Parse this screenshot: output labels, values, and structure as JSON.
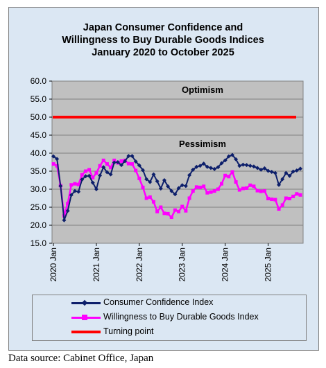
{
  "chart_data": {
    "type": "line",
    "title": [
      "Japan Consumer Confidence and",
      "Willingness to Buy Durable Goods Indices",
      "January 2020 to October 2025"
    ],
    "ylim": [
      15.0,
      60.0
    ],
    "yticks": [
      "60.0",
      "55.0",
      "50.0",
      "45.0",
      "40.0",
      "35.0",
      "30.0",
      "25.0",
      "20.0",
      "15.0"
    ],
    "ytick_values": [
      60,
      55,
      50,
      45,
      40,
      35,
      30,
      25,
      20,
      15
    ],
    "xticks": [
      "2020 Jan",
      "2021 Jan",
      "2022 Jan",
      "2023 Jan",
      "2024 Jan",
      "2025 Jan"
    ],
    "x_start": "2020-01",
    "x_end": "2025-10",
    "annotations": {
      "above": "Optimism",
      "below": "Pessimism"
    },
    "grid": "horizontal",
    "legend_position": "bottom",
    "series": [
      {
        "name": "Consumer Confidence Index",
        "color": "#0d1f6b",
        "marker": "diamond",
        "values": [
          39.1,
          38.4,
          30.9,
          21.4,
          24.0,
          28.4,
          29.5,
          29.3,
          32.7,
          33.6,
          33.7,
          31.8,
          30.0,
          33.8,
          36.1,
          34.7,
          34.1,
          37.4,
          37.5,
          36.7,
          37.8,
          39.2,
          39.2,
          37.7,
          36.6,
          35.3,
          32.8,
          32.0,
          34.1,
          32.2,
          30.2,
          32.5,
          30.8,
          29.5,
          28.6,
          30.3,
          31.1,
          30.9,
          33.9,
          35.4,
          36.2,
          36.5,
          37.1,
          36.2,
          35.9,
          35.6,
          36.1,
          37.2,
          38.0,
          39.1,
          39.5,
          38.3,
          36.5,
          36.8,
          36.7,
          36.5,
          36.3,
          35.9,
          35.4,
          35.8,
          35.1,
          34.8,
          34.5,
          31.2,
          32.8,
          34.5,
          33.7,
          34.9,
          35.2,
          35.7
        ]
      },
      {
        "name": "Willingness to Buy Durable Goods Index",
        "color": "#ff00ff",
        "marker": "square",
        "values": [
          37.0,
          36.5,
          31.0,
          22.6,
          26.0,
          31.2,
          31.5,
          31.3,
          34.0,
          35.0,
          35.4,
          33.2,
          34.5,
          36.5,
          38.0,
          37.0,
          36.0,
          38.0,
          37.3,
          37.8,
          38.0,
          37.1,
          37.0,
          35.2,
          33.0,
          30.5,
          27.5,
          27.8,
          26.5,
          23.8,
          25.0,
          23.3,
          23.2,
          22.2,
          24.2,
          23.8,
          25.2,
          24.0,
          27.5,
          29.5,
          30.6,
          30.5,
          30.8,
          29.0,
          29.2,
          29.5,
          30.0,
          31.5,
          33.8,
          33.5,
          34.8,
          32.0,
          29.8,
          30.2,
          30.3,
          31.1,
          30.8,
          29.6,
          29.4,
          29.5,
          27.4,
          27.2,
          27.1,
          24.5,
          25.6,
          27.5,
          27.4,
          28.0,
          28.7,
          28.4
        ]
      },
      {
        "name": "Turning point",
        "color": "#ff0000",
        "marker": "none",
        "values": [
          50.0,
          50.0
        ]
      }
    ]
  },
  "source_text": "Data source: Cabinet Office, Japan"
}
